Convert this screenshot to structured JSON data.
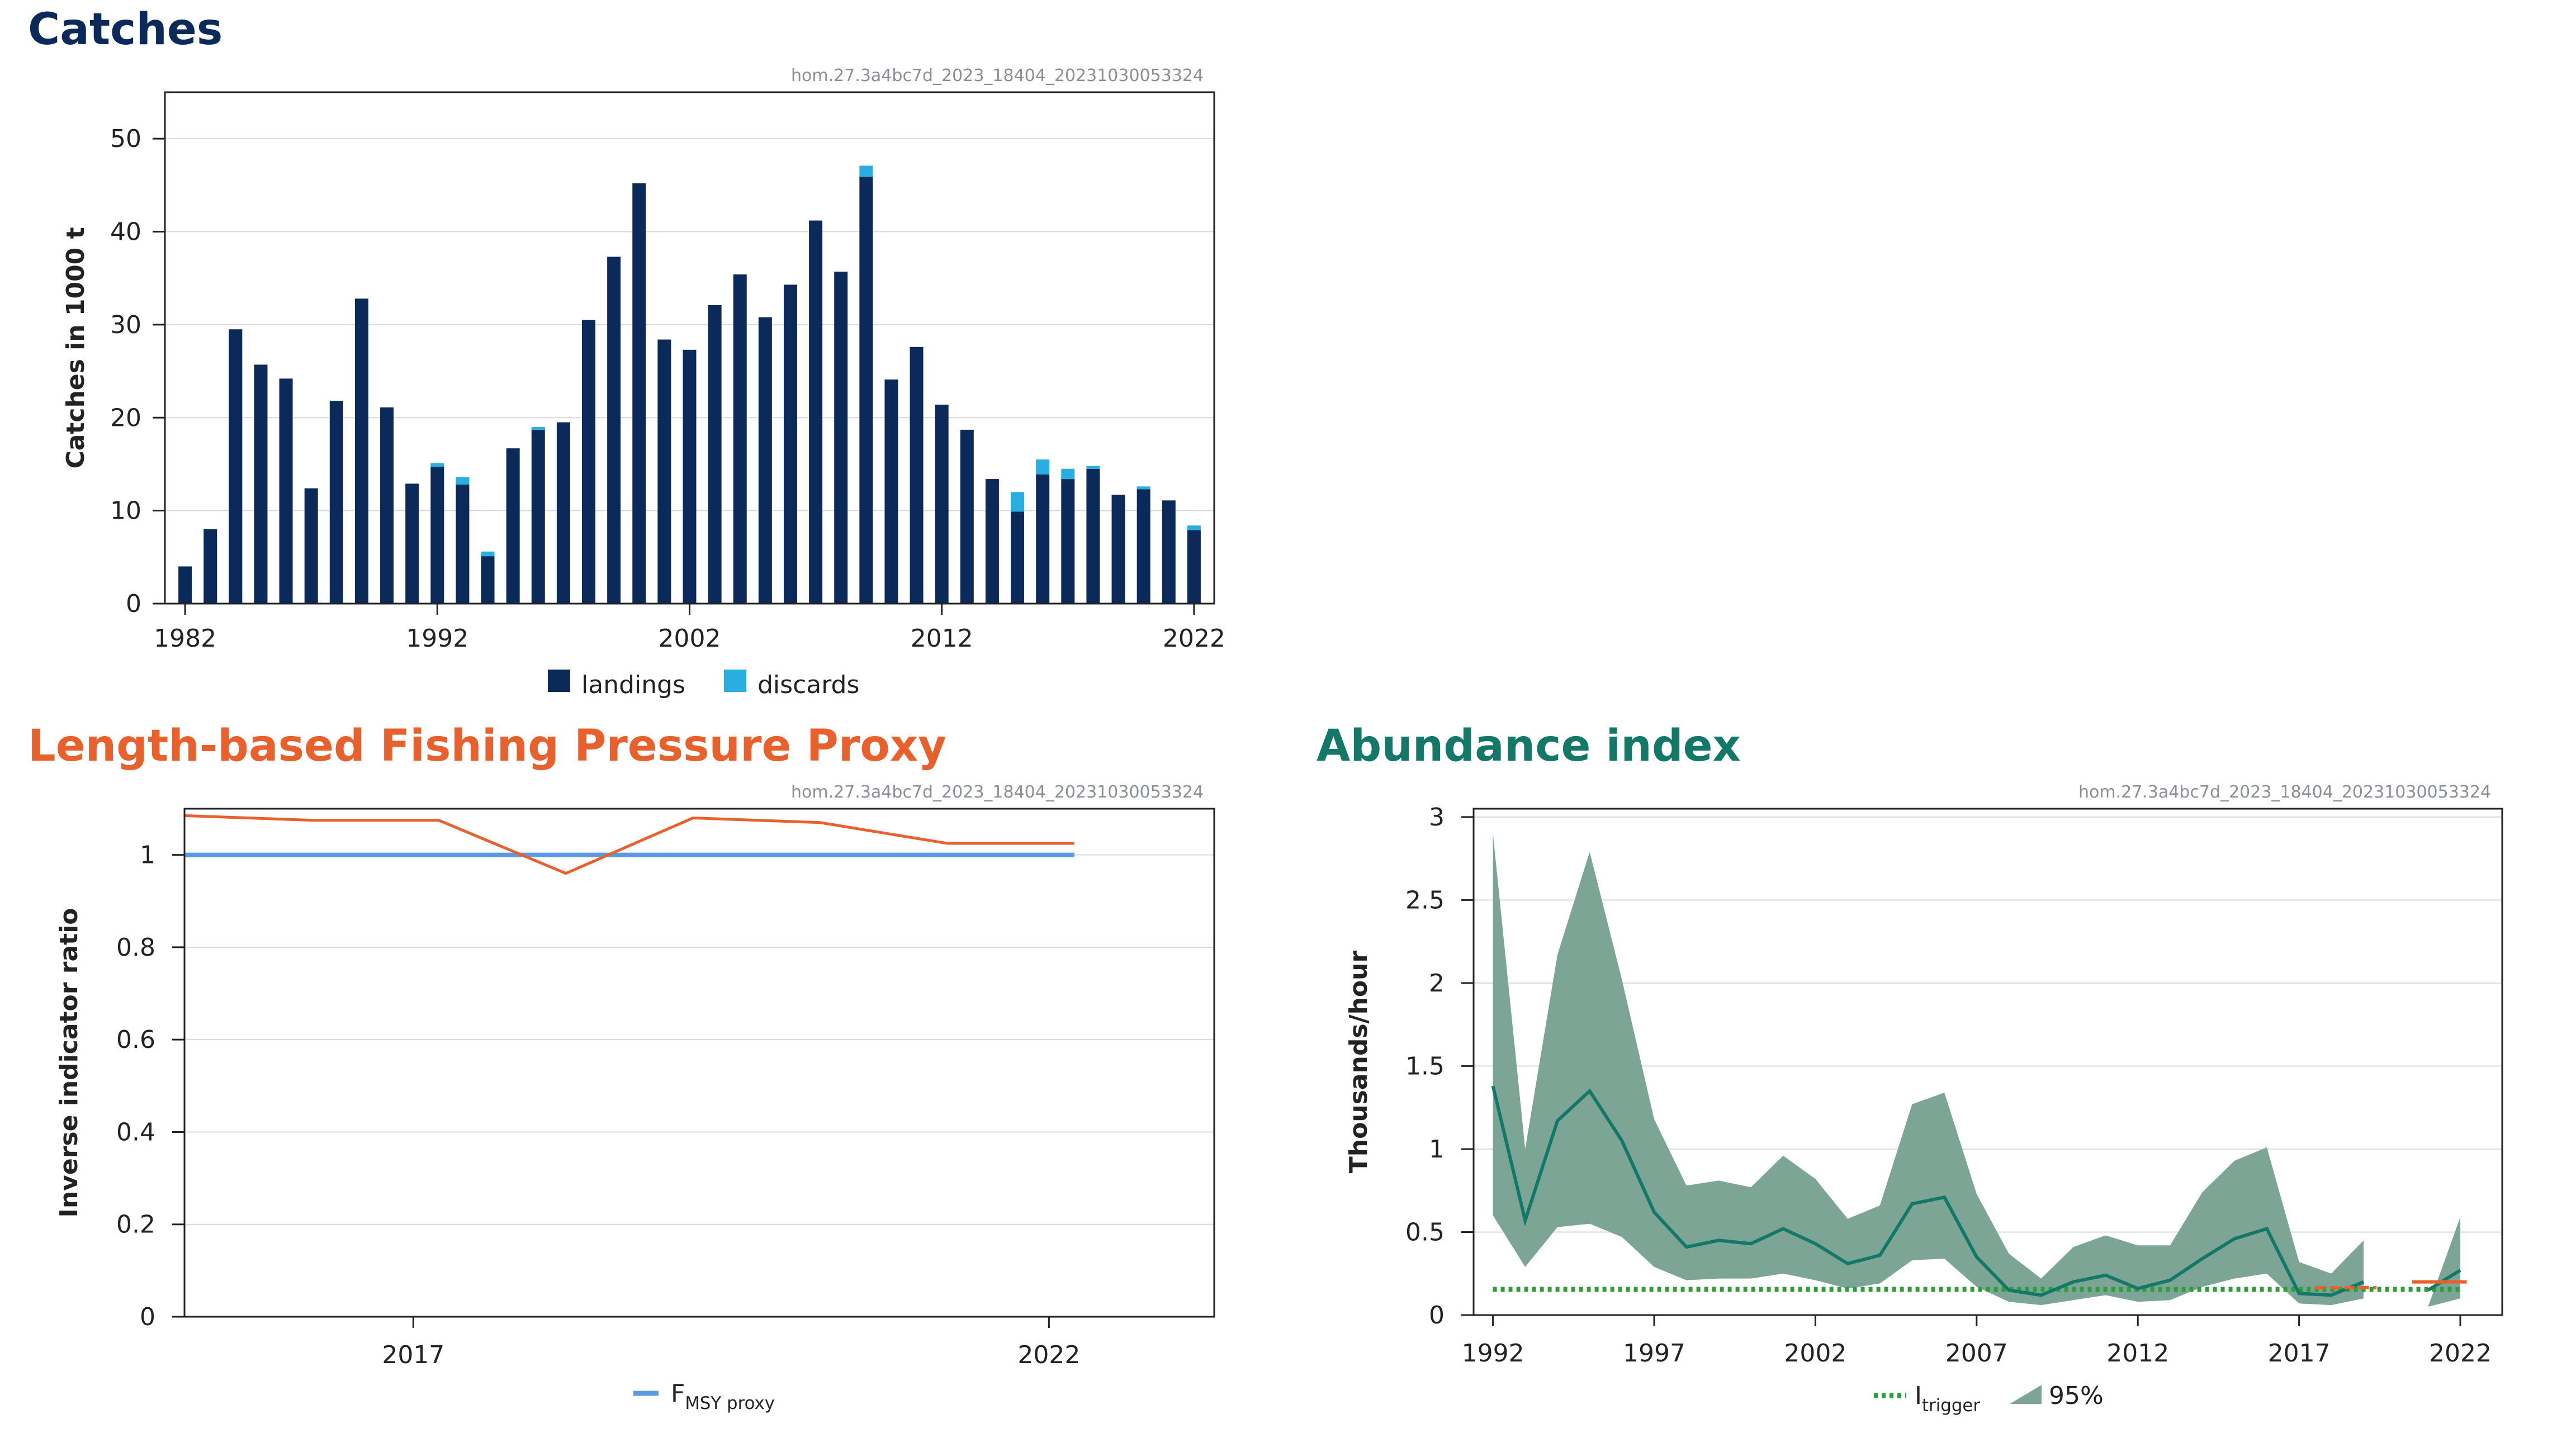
{
  "catches": {
    "title": "Catches",
    "stamp": "hom.27.3a4bc7d_2023_18404_20231030053324",
    "title_color": "#0b2a5a",
    "chart_data": {
      "type": "bar",
      "stacked": true,
      "categories": [
        1982,
        1983,
        1984,
        1985,
        1986,
        1987,
        1988,
        1989,
        1990,
        1991,
        1992,
        1993,
        1994,
        1995,
        1996,
        1997,
        1998,
        1999,
        2000,
        2001,
        2002,
        2003,
        2004,
        2005,
        2006,
        2007,
        2008,
        2009,
        2010,
        2011,
        2012,
        2013,
        2014,
        2015,
        2016,
        2017,
        2018,
        2019,
        2020,
        2021,
        2022
      ],
      "xticks": [
        1982,
        1992,
        2002,
        2012,
        2022
      ],
      "ylabel": "Catches in 1000 t",
      "ylim": [
        0,
        55
      ],
      "yticks": [
        0,
        10,
        20,
        30,
        40,
        50
      ],
      "grid": true,
      "legend_position": "bottom",
      "series": [
        {
          "name": "landings",
          "color": "#0b2a5a",
          "values": [
            4,
            8,
            29.5,
            25.7,
            24.2,
            12.4,
            21.8,
            32.8,
            21.1,
            12.9,
            14.7,
            12.8,
            5.1,
            16.7,
            18.7,
            19.5,
            30.5,
            37.3,
            45.2,
            28.4,
            27.3,
            32.1,
            35.4,
            30.8,
            34.3,
            41.2,
            35.7,
            45.9,
            24.1,
            27.6,
            21.4,
            18.7,
            13.4,
            9.9,
            13.9,
            13.4,
            14.5,
            11.7,
            12.3,
            11.1,
            7.9
          ]
        },
        {
          "name": "discards",
          "color": "#29aee3",
          "values": [
            0,
            0,
            0,
            0,
            0,
            0,
            0,
            0,
            0,
            0,
            0.4,
            0.8,
            0.5,
            0,
            0.3,
            0,
            0,
            0,
            0,
            0,
            0,
            0,
            0,
            0,
            0,
            0,
            0,
            1.2,
            0,
            0,
            0,
            0,
            0,
            2.1,
            1.6,
            1.1,
            0.3,
            0,
            0.3,
            0,
            0.5
          ]
        }
      ]
    }
  },
  "fishing": {
    "title": "Length-based Fishing Pressure Proxy",
    "stamp": "hom.27.3a4bc7d_2023_18404_20231030053324",
    "title_color": "#e8612c",
    "chart_data": {
      "type": "line",
      "ylabel": "Inverse indicator ratio",
      "xlim": [
        2015.2,
        2023.3
      ],
      "ylim": [
        0,
        1.1
      ],
      "yticks": [
        0,
        0.2,
        0.4,
        0.6,
        0.8,
        1
      ],
      "ytick_labels": [
        "0",
        "0.2",
        "0.4",
        "0.6",
        "0.8",
        "1"
      ],
      "xticks": [
        2017,
        2022
      ],
      "grid": true,
      "legend_position": "bottom",
      "series": [
        {
          "name": "",
          "color": "#e8612c",
          "x": [
            2015.2,
            2016.2,
            2017.2,
            2018.2,
            2019.2,
            2020.2,
            2021.2,
            2022.2
          ],
          "y": [
            1.085,
            1.075,
            1.075,
            0.96,
            1.08,
            1.07,
            1.025,
            1.025
          ]
        },
        {
          "name": "FMSY proxy",
          "color": "#5b9be6",
          "y_const": 1.0,
          "x_range": [
            2015.2,
            2022.2
          ]
        }
      ],
      "legend": [
        {
          "label": "F",
          "sub": "MSY proxy",
          "color": "#5b9be6"
        }
      ]
    }
  },
  "abundance": {
    "title": "Abundance index",
    "stamp": "hom.27.3a4bc7d_2023_18404_20231030053324",
    "title_color": "#137867",
    "chart_data": {
      "type": "line",
      "ylabel": "Thousands/hour",
      "xlim": [
        1991.4,
        2023.3
      ],
      "ylim": [
        0,
        3.05
      ],
      "yticks": [
        0,
        0.5,
        1,
        1.5,
        2,
        2.5,
        3
      ],
      "ytick_labels": [
        "0",
        "0.5",
        "1",
        "1.5",
        "2",
        "2.5",
        "3"
      ],
      "xticks": [
        1992,
        1997,
        2002,
        2007,
        2012,
        2017,
        2022
      ],
      "grid": true,
      "legend_position": "bottom",
      "index": {
        "name": "index",
        "color": "#137867",
        "x": [
          1992,
          1993,
          1994,
          1995,
          1996,
          1997,
          1998,
          1999,
          2000,
          2001,
          2002,
          2003,
          2004,
          2005,
          2006,
          2007,
          2008,
          2009,
          2010,
          2011,
          2012,
          2013,
          2014,
          2015,
          2016,
          2017,
          2018,
          2019
        ],
        "y": [
          1.38,
          0.57,
          1.17,
          1.35,
          1.05,
          0.62,
          0.41,
          0.45,
          0.43,
          0.52,
          0.43,
          0.31,
          0.36,
          0.67,
          0.71,
          0.35,
          0.15,
          0.12,
          0.2,
          0.24,
          0.16,
          0.21,
          0.34,
          0.46,
          0.52,
          0.13,
          0.12,
          0.2
        ]
      },
      "index_recent": {
        "color": "#137867",
        "x": [
          2021,
          2022
        ],
        "y": [
          0.15,
          0.27
        ]
      },
      "ci_95": [
        {
          "x": [
            1992,
            1993,
            1994,
            1995,
            1996,
            1997,
            1998,
            1999,
            2000,
            2001,
            2002,
            2003,
            2004,
            2005,
            2006,
            2007,
            2008,
            2009,
            2010,
            2011,
            2012,
            2013,
            2014,
            2015,
            2016,
            2017,
            2018,
            2019
          ],
          "upper": [
            2.9,
            1.0,
            2.17,
            2.79,
            2.02,
            1.18,
            0.78,
            0.81,
            0.77,
            0.96,
            0.82,
            0.58,
            0.66,
            1.27,
            1.34,
            0.73,
            0.37,
            0.22,
            0.41,
            0.48,
            0.42,
            0.42,
            0.74,
            0.93,
            1.01,
            0.32,
            0.25,
            0.45
          ],
          "lower": [
            0.6,
            0.29,
            0.53,
            0.55,
            0.47,
            0.29,
            0.21,
            0.22,
            0.22,
            0.25,
            0.21,
            0.16,
            0.19,
            0.33,
            0.34,
            0.17,
            0.08,
            0.06,
            0.09,
            0.12,
            0.08,
            0.09,
            0.17,
            0.22,
            0.25,
            0.07,
            0.06,
            0.1
          ]
        },
        {
          "x": [
            2021,
            2022
          ],
          "upper": [
            0.05,
            0.59
          ],
          "lower": [
            0.05,
            0.1
          ]
        }
      ],
      "ci_color": "#7da596",
      "i_trigger": {
        "name": "Itrigger",
        "value": 0.155,
        "color": "#2e9e3a"
      },
      "orange_segments": [
        {
          "x": [
            2017.5,
            2019.4
          ],
          "y": 0.165
        },
        {
          "x": [
            2020.5,
            2022.2
          ],
          "y": 0.2
        }
      ],
      "orange_color": "#e8612c",
      "legend": [
        {
          "label": "I",
          "sub": "trigger",
          "color": "#2e9e3a"
        },
        {
          "label": "95%",
          "color": "#7da596"
        }
      ]
    }
  }
}
